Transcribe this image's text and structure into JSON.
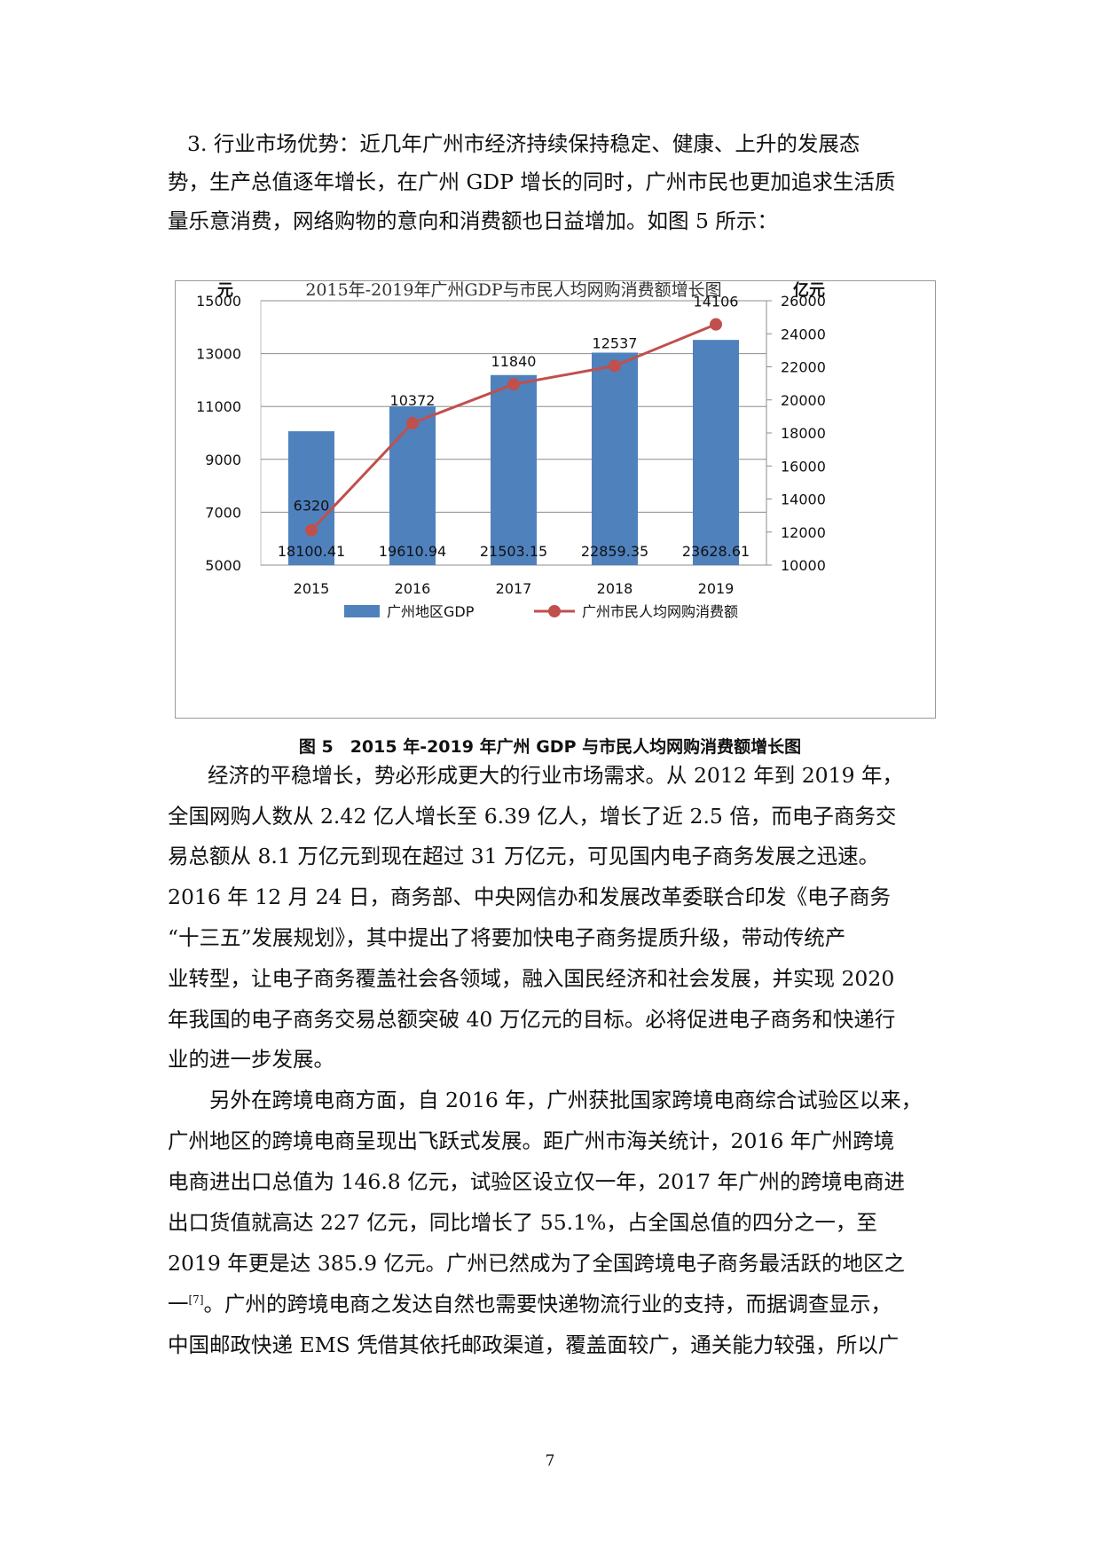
{
  "paragraphs": {
    "p1": [
      "3. 行业市场优势：近几年广州市经济持续保持稳定、健康、上升的发展态",
      "势，生产总值逐年增长，在广州 GDP 增长的同时，广州市民也更加追求生活质",
      "量乐意消费，网络购物的意向和消费额也日益增加。如图 5 所示："
    ],
    "p2": [
      "经济的平稳增长，势必形成更大的行业市场需求。从 2012 年到 2019 年，",
      "全国网购人数从 2.42 亿人增长至 6.39 亿人，增长了近 2.5 倍，而电子商务交",
      "易总额从 8.1 万亿元到现在超过 31 万亿元，可见国内电子商务发展之迅速。",
      "2016 年 12 月 24 日，商务部、中央网信办和发展改革委联合印发《电子商务",
      "“十三五”发展规划》，其中提出了将要加快电子商务提质升级，带动传统产",
      "业转型，让电子商务覆盖社会各领域，融入国民经济和社会发展，并实现 2020",
      "年我国的电子商务交易总额突破 40 万亿元的目标。必将促进电子商务和快递行",
      "业的进一步发展。"
    ],
    "p3": [
      "另外在跨境电商方面，自 2016 年，广州获批国家跨境电商综合试验区以来，",
      "广州地区的跨境电商呈现出飞跃式发展。距广州市海关统计，2016 年广州跨境",
      "电商进出口总值为 146.8 亿元，试验区设立仅一年，2017 年广州的跨境电商进",
      "出口货值就高达 227 亿元，同比增长了 55.1%，占全国总值的四分之一，至",
      "2019 年更是达 385.9 亿元。广州已然成为了全国跨境电子商务最活跃的地区之",
      "。广州的跨境电商之发达自然也需要快递物流行业的支持，而据调查显示，",
      "中国邮政快递 EMS 凭借其依托邮政渠道，覆盖面较广，通关能力较强，所以广"
    ],
    "p3_line6_prefix": "一",
    "p3_line6_ref": "[7]"
  },
  "figure": {
    "caption": "图 5　2015 年-2019 年广州 GDP 与市民人均网购消费额增长图"
  },
  "page_number": "7",
  "chart_data": {
    "type": "bar",
    "title": "2015年-2019年广州GDP与市民人均网购消费额增长图",
    "categories": [
      "2015",
      "2016",
      "2017",
      "2018",
      "2019"
    ],
    "y_left_unit": "元",
    "y_right_unit": "亿元",
    "y_left_ticks": [
      "15000",
      "13000",
      "11000",
      "9000",
      "7000",
      "5000"
    ],
    "y_right_ticks": [
      "26000",
      "24000",
      "22000",
      "20000",
      "18000",
      "16000",
      "14000",
      "12000",
      "10000"
    ],
    "y_left_range": [
      5000,
      15000
    ],
    "y_right_range": [
      10000,
      26000
    ],
    "series": [
      {
        "name": "广州地区GDP",
        "type": "bar",
        "axis": "right",
        "values": [
          18100.41,
          19610.94,
          21503.15,
          22859.35,
          23628.61
        ],
        "labels": [
          "18100.41",
          "19610.94",
          "21503.15",
          "22859.35",
          "23628.61"
        ],
        "color": "#4f81bd"
      },
      {
        "name": "广州市民人均网购消费额",
        "type": "line",
        "axis": "left",
        "values": [
          6320,
          10372,
          11840,
          12537,
          14106
        ],
        "labels": [
          "6320",
          "10372",
          "11840",
          "12537",
          "14106"
        ],
        "color": "#c0504d"
      }
    ],
    "legend_position": "bottom",
    "grid": true
  }
}
